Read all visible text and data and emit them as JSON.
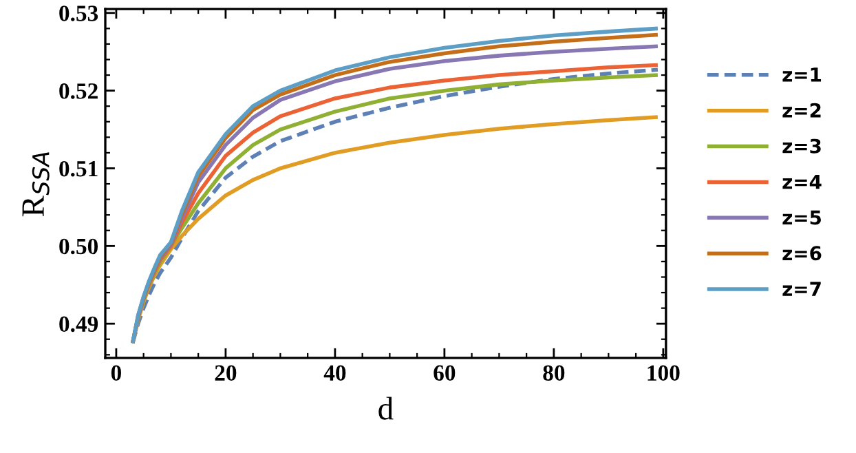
{
  "chart_data": {
    "type": "line",
    "xlabel": "d",
    "ylabel": "R$_{SSA}$",
    "xlim": [
      -2,
      100.5
    ],
    "ylim": [
      0.4856,
      0.5305
    ],
    "xticks": [
      0,
      20,
      40,
      60,
      80,
      100
    ],
    "yticks": [
      0.49,
      {
        "value": 0.5,
        "label": "0.50"
      },
      0.51,
      0.52,
      0.53
    ],
    "x": [
      3,
      4,
      5,
      6,
      7,
      8,
      10,
      12,
      15,
      20,
      25,
      30,
      40,
      50,
      60,
      70,
      80,
      90,
      99
    ],
    "legend": "right",
    "grid": false,
    "series": [
      {
        "name": "z=1",
        "color": "#5e81b5",
        "line_style": "dashed",
        "values": [
          0.4875,
          0.49,
          0.492,
          0.4937,
          0.4952,
          0.4965,
          0.4985,
          0.501,
          0.5045,
          0.5088,
          0.5115,
          0.5135,
          0.516,
          0.5178,
          0.5193,
          0.5205,
          0.5215,
          0.5222,
          0.5227
        ]
      },
      {
        "name": "z=2",
        "color": "#e19c24",
        "values": [
          0.4875,
          0.4905,
          0.4928,
          0.4947,
          0.4962,
          0.4975,
          0.4996,
          0.5013,
          0.5035,
          0.5065,
          0.5085,
          0.51,
          0.512,
          0.5133,
          0.5143,
          0.5151,
          0.5157,
          0.5162,
          0.5166
        ]
      },
      {
        "name": "z=3",
        "color": "#8fb032",
        "values": [
          0.4875,
          0.4907,
          0.493,
          0.4949,
          0.4965,
          0.4979,
          0.5,
          0.5023,
          0.5055,
          0.51,
          0.513,
          0.515,
          0.5173,
          0.519,
          0.52,
          0.5208,
          0.5213,
          0.5217,
          0.522
        ]
      },
      {
        "name": "z=4",
        "color": "#eb6235",
        "values": [
          0.4875,
          0.4908,
          0.4932,
          0.4951,
          0.4967,
          0.4982,
          0.5,
          0.503,
          0.5068,
          0.5116,
          0.5146,
          0.5167,
          0.519,
          0.5204,
          0.5213,
          0.522,
          0.5225,
          0.523,
          0.5233
        ]
      },
      {
        "name": "z=5",
        "color": "#8778b3",
        "values": [
          0.4875,
          0.4909,
          0.4933,
          0.4953,
          0.4969,
          0.4984,
          0.5002,
          0.5036,
          0.5082,
          0.513,
          0.5165,
          0.5188,
          0.5212,
          0.5228,
          0.5238,
          0.5245,
          0.525,
          0.5254,
          0.5257
        ]
      },
      {
        "name": "z=6",
        "color": "#c56e1a",
        "values": [
          0.4875,
          0.491,
          0.4934,
          0.4954,
          0.497,
          0.4986,
          0.5004,
          0.5041,
          0.509,
          0.5139,
          0.5175,
          0.5195,
          0.522,
          0.5237,
          0.5248,
          0.5257,
          0.5263,
          0.5268,
          0.5272
        ]
      },
      {
        "name": "z=7",
        "color": "#5d9ec7",
        "values": [
          0.4875,
          0.4911,
          0.4935,
          0.4955,
          0.4972,
          0.4988,
          0.5005,
          0.5045,
          0.5095,
          0.5144,
          0.518,
          0.52,
          0.5226,
          0.5243,
          0.5255,
          0.5264,
          0.5271,
          0.5276,
          0.528
        ]
      }
    ]
  }
}
